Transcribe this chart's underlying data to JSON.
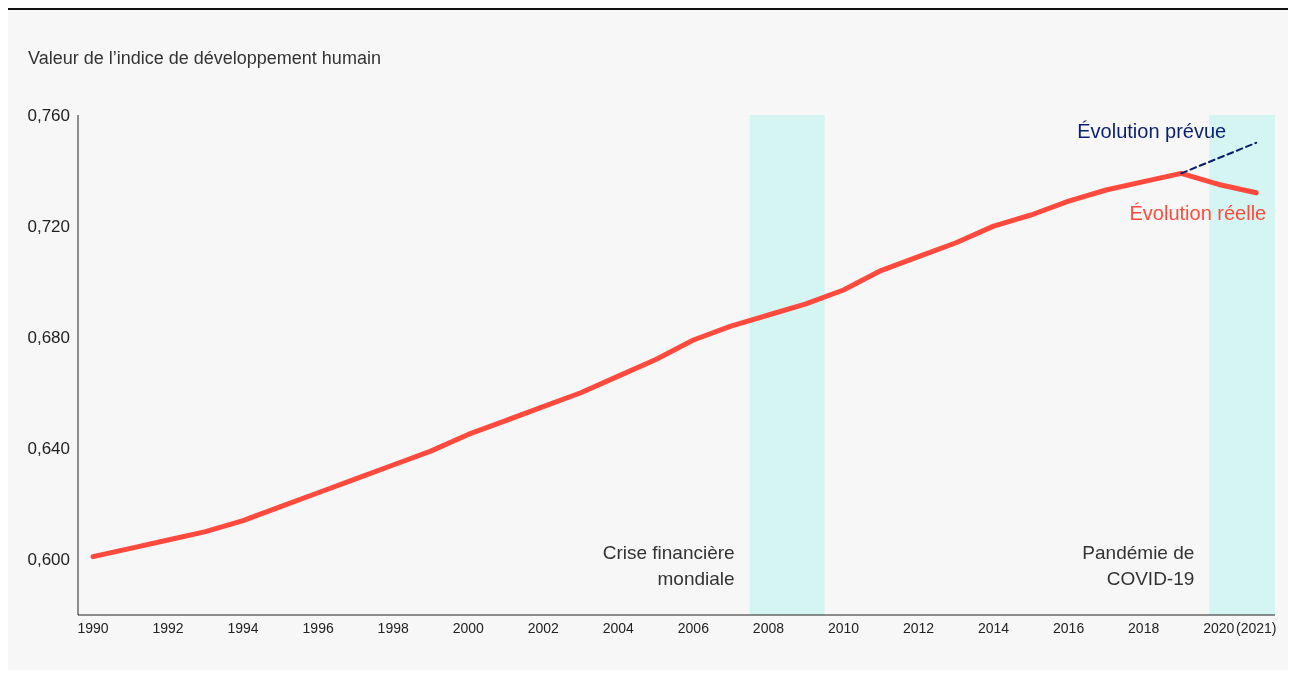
{
  "chart_data": {
    "type": "line",
    "ylabel": "Valeur de l’indice de développement humain",
    "xlim": [
      1989.6,
      2021.5
    ],
    "xticks": [
      1990,
      1992,
      1994,
      1996,
      1998,
      2000,
      2002,
      2004,
      2006,
      2008,
      2010,
      2012,
      2014,
      2016,
      2018,
      2020,
      {
        "value": 2021,
        "label": "(2021)"
      }
    ],
    "ylim": [
      0.58,
      0.76
    ],
    "yticks": [
      {
        "value": 0.6,
        "label": "0,600"
      },
      {
        "value": 0.64,
        "label": "0,640"
      },
      {
        "value": 0.68,
        "label": "0,680"
      },
      {
        "value": 0.72,
        "label": "0,720"
      },
      {
        "value": 0.76,
        "label": "0,760"
      }
    ],
    "series": [
      {
        "name": "Évolution réelle",
        "color": "#ff4a3d",
        "line_style": "solid",
        "x": [
          1990,
          1991,
          1992,
          1993,
          1994,
          1995,
          1996,
          1997,
          1998,
          1999,
          2000,
          2001,
          2002,
          2003,
          2004,
          2005,
          2006,
          2007,
          2008,
          2009,
          2010,
          2011,
          2012,
          2013,
          2014,
          2015,
          2016,
          2017,
          2018,
          2019,
          2020,
          2021
        ],
        "values": [
          0.601,
          0.604,
          0.607,
          0.61,
          0.614,
          0.619,
          0.624,
          0.629,
          0.634,
          0.639,
          0.645,
          0.65,
          0.655,
          0.66,
          0.666,
          0.672,
          0.679,
          0.684,
          0.688,
          0.692,
          0.697,
          0.704,
          0.709,
          0.714,
          0.72,
          0.724,
          0.729,
          0.733,
          0.736,
          0.739,
          0.735,
          0.732
        ]
      },
      {
        "name": "Évolution prévue",
        "color": "#0a1f6e",
        "line_style": "dashed",
        "x": [
          2019,
          2021
        ],
        "values": [
          0.739,
          0.75
        ]
      }
    ],
    "bands": [
      {
        "axis": "x",
        "from": 2007.5,
        "to": 2009.5,
        "label": "Crise financière mondiale",
        "color": "#d5f5f2"
      },
      {
        "axis": "x",
        "from": 2019.75,
        "to": 2021.5,
        "label": "Pandémie de COVID-19",
        "color": "#d5f5f2"
      }
    ]
  }
}
